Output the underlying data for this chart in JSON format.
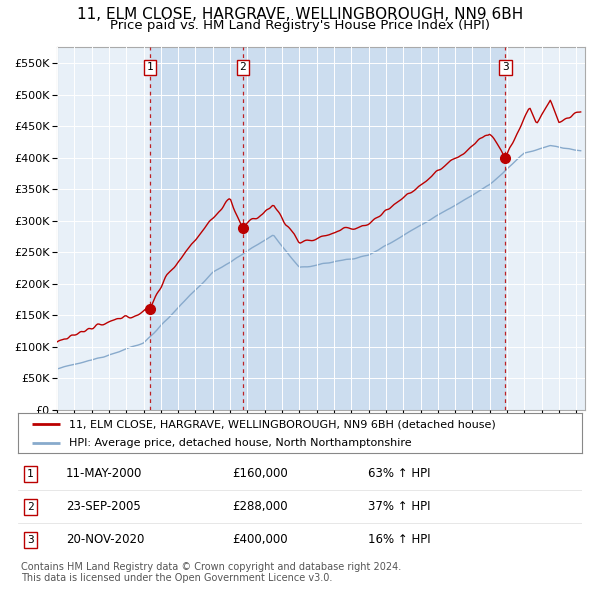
{
  "title1": "11, ELM CLOSE, HARGRAVE, WELLINGBOROUGH, NN9 6BH",
  "title2": "Price paid vs. HM Land Registry's House Price Index (HPI)",
  "xlim_start": 1995.0,
  "xlim_end": 2025.5,
  "ylim": [
    0,
    575000
  ],
  "yticks": [
    0,
    50000,
    100000,
    150000,
    200000,
    250000,
    300000,
    350000,
    400000,
    450000,
    500000,
    550000
  ],
  "ytick_labels": [
    "£0",
    "£50K",
    "£100K",
    "£150K",
    "£200K",
    "£250K",
    "£300K",
    "£350K",
    "£400K",
    "£450K",
    "£500K",
    "£550K"
  ],
  "transactions": [
    {
      "num": 1,
      "year": 2000.37,
      "price": 160000,
      "date": "11-MAY-2000",
      "pct": "63%",
      "dir": "↑"
    },
    {
      "num": 2,
      "year": 2005.73,
      "price": 288000,
      "date": "23-SEP-2005",
      "pct": "37%",
      "dir": "↑"
    },
    {
      "num": 3,
      "year": 2020.9,
      "price": 400000,
      "date": "20-NOV-2020",
      "pct": "16%",
      "dir": "↑"
    }
  ],
  "legend_line1": "11, ELM CLOSE, HARGRAVE, WELLINGBOROUGH, NN9 6BH (detached house)",
  "legend_line2": "HPI: Average price, detached house, North Northamptonshire",
  "footer1": "Contains HM Land Registry data © Crown copyright and database right 2024.",
  "footer2": "This data is licensed under the Open Government Licence v3.0.",
  "red_color": "#bb0000",
  "blue_color": "#88aacc",
  "shade_color": "#ccddef",
  "bg_plot": "#e8f0f8",
  "bg_fig": "#ffffff",
  "grid_color": "#ffffff",
  "title_fontsize": 11,
  "subtitle_fontsize": 9.5
}
